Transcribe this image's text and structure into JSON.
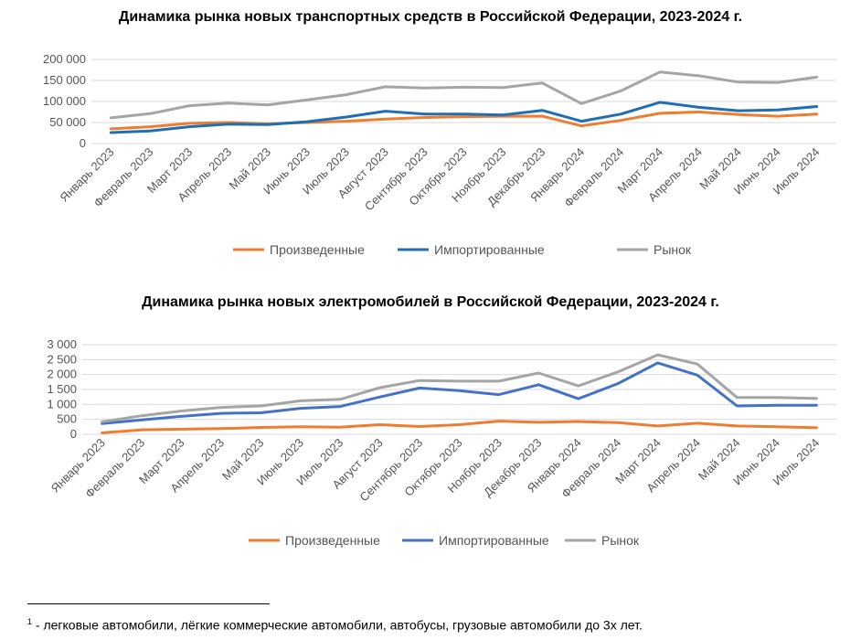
{
  "chart_data": [
    {
      "type": "line",
      "title": "Динамика рынка новых транспортных средств в Российской Федерации, 2023-2024 г.",
      "categories": [
        "Январь 2023",
        "Февраль 2023",
        "Март 2023",
        "Апрель 2023",
        "Май 2023",
        "Июнь 2023",
        "Июль 2023",
        "Август 2023",
        "Сентябрь 2023",
        "Октябрь 2023",
        "Ноябрь 2023",
        "Декабрь 2023",
        "Январь 2024",
        "Февраль 2024",
        "Март 2024",
        "Апрель 2024",
        "Май 2024",
        "Июнь 2024",
        "Июль 2024"
      ],
      "yticks": [
        "0",
        "50 000",
        "100 000",
        "150 000",
        "200 000"
      ],
      "ylim": [
        0,
        200000
      ],
      "grid": true,
      "legend_position": "bottom",
      "series": [
        {
          "name": "Произведенные",
          "color": "#ED7D31",
          "values": [
            35000,
            40000,
            48000,
            50000,
            47000,
            50000,
            53000,
            58000,
            62000,
            64000,
            65000,
            65000,
            42000,
            55000,
            72000,
            75000,
            69000,
            65000,
            70000
          ]
        },
        {
          "name": "Импортированные",
          "color": "#1F6FB5",
          "values": [
            26000,
            30000,
            40000,
            46000,
            45000,
            52000,
            63000,
            77000,
            70000,
            70000,
            68000,
            79000,
            53000,
            70000,
            98000,
            86000,
            78000,
            80000,
            88000
          ]
        },
        {
          "name": "Рынок",
          "color": "#A5A5A5",
          "values": [
            61000,
            71000,
            90000,
            96000,
            92000,
            104000,
            116000,
            135000,
            132000,
            134000,
            133000,
            144000,
            95000,
            125000,
            170000,
            161000,
            146000,
            145000,
            158000
          ]
        }
      ]
    },
    {
      "type": "line",
      "title": "Динамика рынка новых электромобилей в Российской Федерации, 2023-2024 г.",
      "categories": [
        "Январь 2023",
        "Февраль 2023",
        "Март 2023",
        "Апрель 2023",
        "Май 2023",
        "Июнь 2023",
        "Июль 2023",
        "Август 2023",
        "Сентябрь 2023",
        "Октябрь 2023",
        "Ноябрь 2023",
        "Декабрь 2023",
        "Январь 2024",
        "Февраль 2024",
        "Март 2024",
        "Апрель 2024",
        "Май 2024",
        "Июнь 2024",
        "Июль 2024"
      ],
      "yticks": [
        "0",
        "500",
        "1 000",
        "1 500",
        "2 000",
        "2 500",
        "3 000"
      ],
      "ylim": [
        0,
        3000
      ],
      "grid": true,
      "legend_position": "bottom",
      "series": [
        {
          "name": "Произведенные",
          "color": "#ED7D31",
          "values": [
            50,
            150,
            170,
            190,
            230,
            250,
            240,
            320,
            260,
            320,
            440,
            400,
            430,
            390,
            280,
            370,
            280,
            250,
            220
          ]
        },
        {
          "name": "Импортированные",
          "color": "#4472C4",
          "values": [
            360,
            480,
            600,
            700,
            720,
            870,
            930,
            1250,
            1550,
            1460,
            1330,
            1660,
            1190,
            1700,
            2390,
            1980,
            950,
            970,
            970
          ]
        },
        {
          "name": "Рынок",
          "color": "#A5A5A5",
          "values": [
            420,
            620,
            780,
            900,
            950,
            1120,
            1170,
            1560,
            1800,
            1780,
            1780,
            2050,
            1620,
            2090,
            2660,
            2350,
            1230,
            1230,
            1200
          ]
        }
      ]
    }
  ],
  "footnote": {
    "marker": "1",
    "text": " - легковые автомобили, лёгкие коммерческие автомобили, автобусы, грузовые автомобили до 3х лет."
  }
}
